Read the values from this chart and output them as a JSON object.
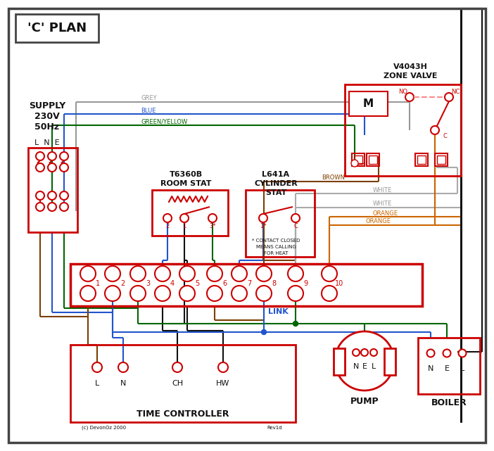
{
  "bg": "#ffffff",
  "RED": "#cc0000",
  "BLUE": "#2255cc",
  "GREEN": "#006600",
  "GREY": "#999999",
  "BROWN": "#7B3F00",
  "ORANGE": "#cc6600",
  "BLACK": "#111111",
  "PINK": "#ff8888",
  "DKGREY": "#444444",
  "title": "'C' PLAN",
  "zone_valve_line1": "V4043H",
  "zone_valve_line2": "ZONE VALVE",
  "room_stat_line1": "T6360B",
  "room_stat_line2": "ROOM STAT",
  "cyl_stat_line1": "L641A",
  "cyl_stat_line2": "CYLINDER",
  "cyl_stat_line3": "STAT",
  "tc_label": "TIME CONTROLLER",
  "pump_label": "PUMP",
  "boiler_label": "BOILER",
  "supply_line1": "SUPPLY",
  "supply_line2": "230V",
  "supply_line3": "50Hz",
  "lne_label": "L  N  E",
  "link_label": "LINK",
  "cyl_note1": "* CONTACT CLOSED",
  "cyl_note2": "MEANS CALLING",
  "cyl_note3": "FOR HEAT",
  "grey_label": "GREY",
  "blue_label": "BLUE",
  "gy_label": "GREEN/YELLOW",
  "brown_label": "BROWN",
  "white_label": "WHITE",
  "orange_label": "ORANGE",
  "copyright": "(c) DevonOz 2000",
  "rev": "Rev1d",
  "motor_label": "M",
  "no_label": "NO",
  "nc_label": "NC",
  "c_label": "C"
}
